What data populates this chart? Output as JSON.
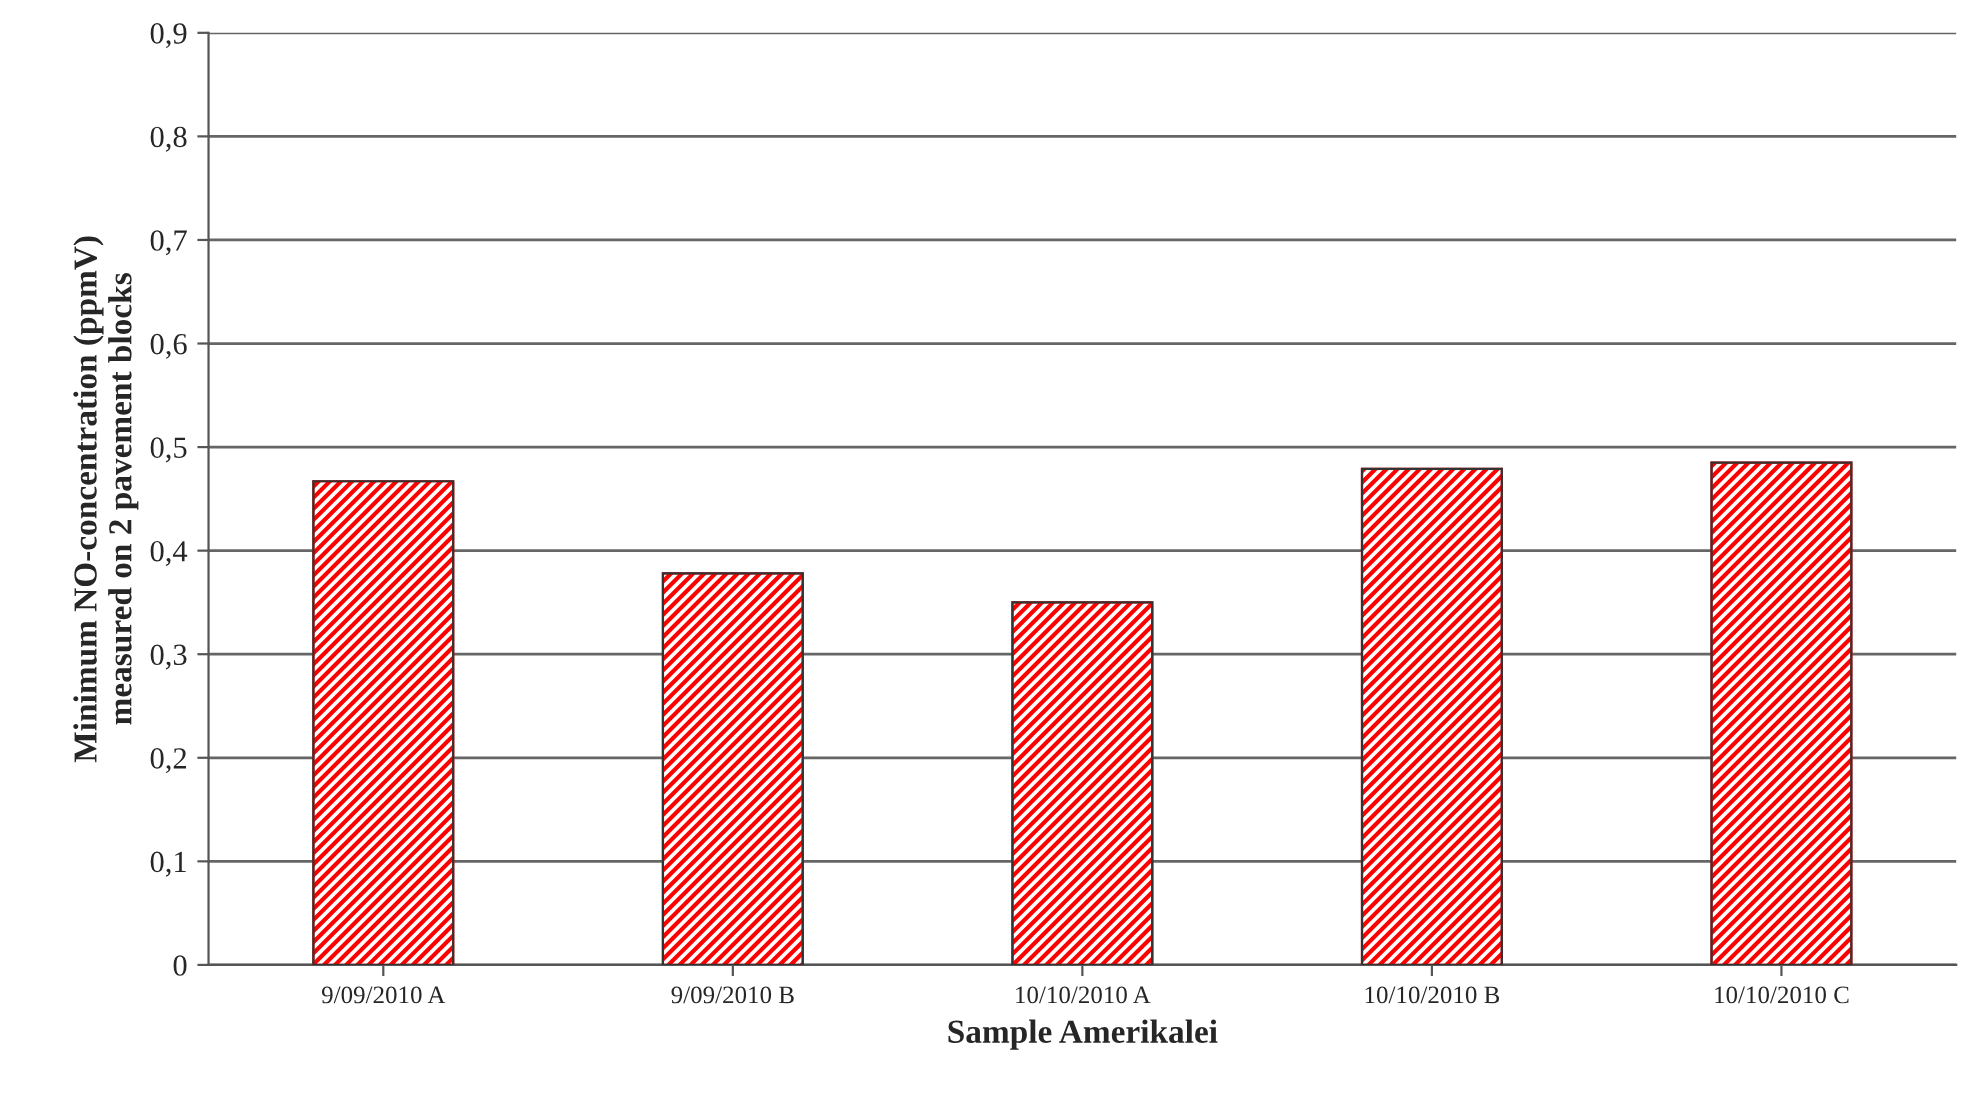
{
  "chart_data": {
    "type": "bar",
    "xlabel": "Sample Amerikalei",
    "ylabel": "Minimum NO-concentration (ppmV)\nmeasured on 2 pavement blocks",
    "categories": [
      "9/09/2010 A",
      "9/09/2010 B",
      "10/10/2010 A",
      "10/10/2010 B",
      "10/10/2010 C"
    ],
    "values": [
      0.467,
      0.378,
      0.35,
      0.479,
      0.485
    ],
    "color": "#ff0000",
    "ylim": [
      0,
      0.9
    ],
    "yticks": [
      {
        "value": 0,
        "label": "0"
      },
      {
        "value": 0.1,
        "label": "0,1"
      },
      {
        "value": 0.2,
        "label": "0,2"
      },
      {
        "value": 0.3,
        "label": "0,3"
      },
      {
        "value": 0.4,
        "label": "0,4"
      },
      {
        "value": 0.5,
        "label": "0,5"
      },
      {
        "value": 0.6,
        "label": "0,6"
      },
      {
        "value": 0.7,
        "label": "0,7"
      },
      {
        "value": 0.8,
        "label": "0,8"
      },
      {
        "value": 0.9,
        "label": "0,9"
      }
    ],
    "grid": "y"
  }
}
